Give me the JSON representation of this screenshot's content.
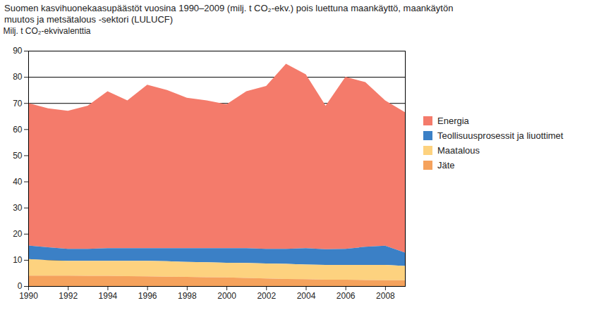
{
  "chart_data": {
    "type": "area",
    "stacked": true,
    "title": "Suomen kasvihuonekaasupäästöt vuosina 1990–2009 (milj. t CO₂-ekv.) pois luettuna maankäyttö, maankäytön muutos ja metsätalous -sektori (LULUCF)",
    "y_label": "Milj. t CO₂-ekvivalenttia",
    "x": [
      1990,
      1991,
      1992,
      1993,
      1994,
      1995,
      1996,
      1997,
      1998,
      1999,
      2000,
      2001,
      2002,
      2003,
      2004,
      2005,
      2006,
      2007,
      2008,
      2009
    ],
    "xlim": [
      1990,
      2009
    ],
    "xticks": [
      1990,
      1992,
      1994,
      1996,
      1998,
      2000,
      2002,
      2004,
      2006,
      2008
    ],
    "ylim": [
      0,
      90
    ],
    "yticks": [
      0,
      10,
      20,
      30,
      40,
      50,
      60,
      70,
      80,
      90
    ],
    "grid": true,
    "legend": "right",
    "series": [
      {
        "name": "Energia",
        "color": "#f47b6b",
        "values": [
          54.5,
          53.2,
          52.8,
          54.8,
          60.0,
          56.5,
          62.5,
          60.5,
          57.5,
          56.5,
          55.0,
          60.0,
          62.3,
          70.8,
          66.5,
          54.9,
          65.8,
          63.0,
          55.6,
          53.7
        ]
      },
      {
        "name": "Teollisuusprosessit ja liuottimet",
        "color": "#3b80c6",
        "values": [
          5.2,
          4.9,
          4.6,
          4.6,
          4.9,
          4.9,
          4.9,
          5.0,
          5.3,
          5.4,
          5.6,
          5.7,
          5.6,
          5.7,
          6.3,
          6.0,
          6.1,
          6.9,
          7.3,
          5.1
        ]
      },
      {
        "name": "Maatalous",
        "color": "#fdd27f",
        "values": [
          6.3,
          5.9,
          5.6,
          5.7,
          5.7,
          5.8,
          5.9,
          5.9,
          5.7,
          5.7,
          5.6,
          5.7,
          5.7,
          5.8,
          5.6,
          5.7,
          5.7,
          5.8,
          5.9,
          5.5
        ]
      },
      {
        "name": "Jäte",
        "color": "#f5a25c",
        "values": [
          4.0,
          4.0,
          4.0,
          3.9,
          3.9,
          3.8,
          3.7,
          3.6,
          3.5,
          3.4,
          3.3,
          3.1,
          2.9,
          2.7,
          2.6,
          2.4,
          2.4,
          2.3,
          2.2,
          2.2
        ]
      }
    ]
  }
}
